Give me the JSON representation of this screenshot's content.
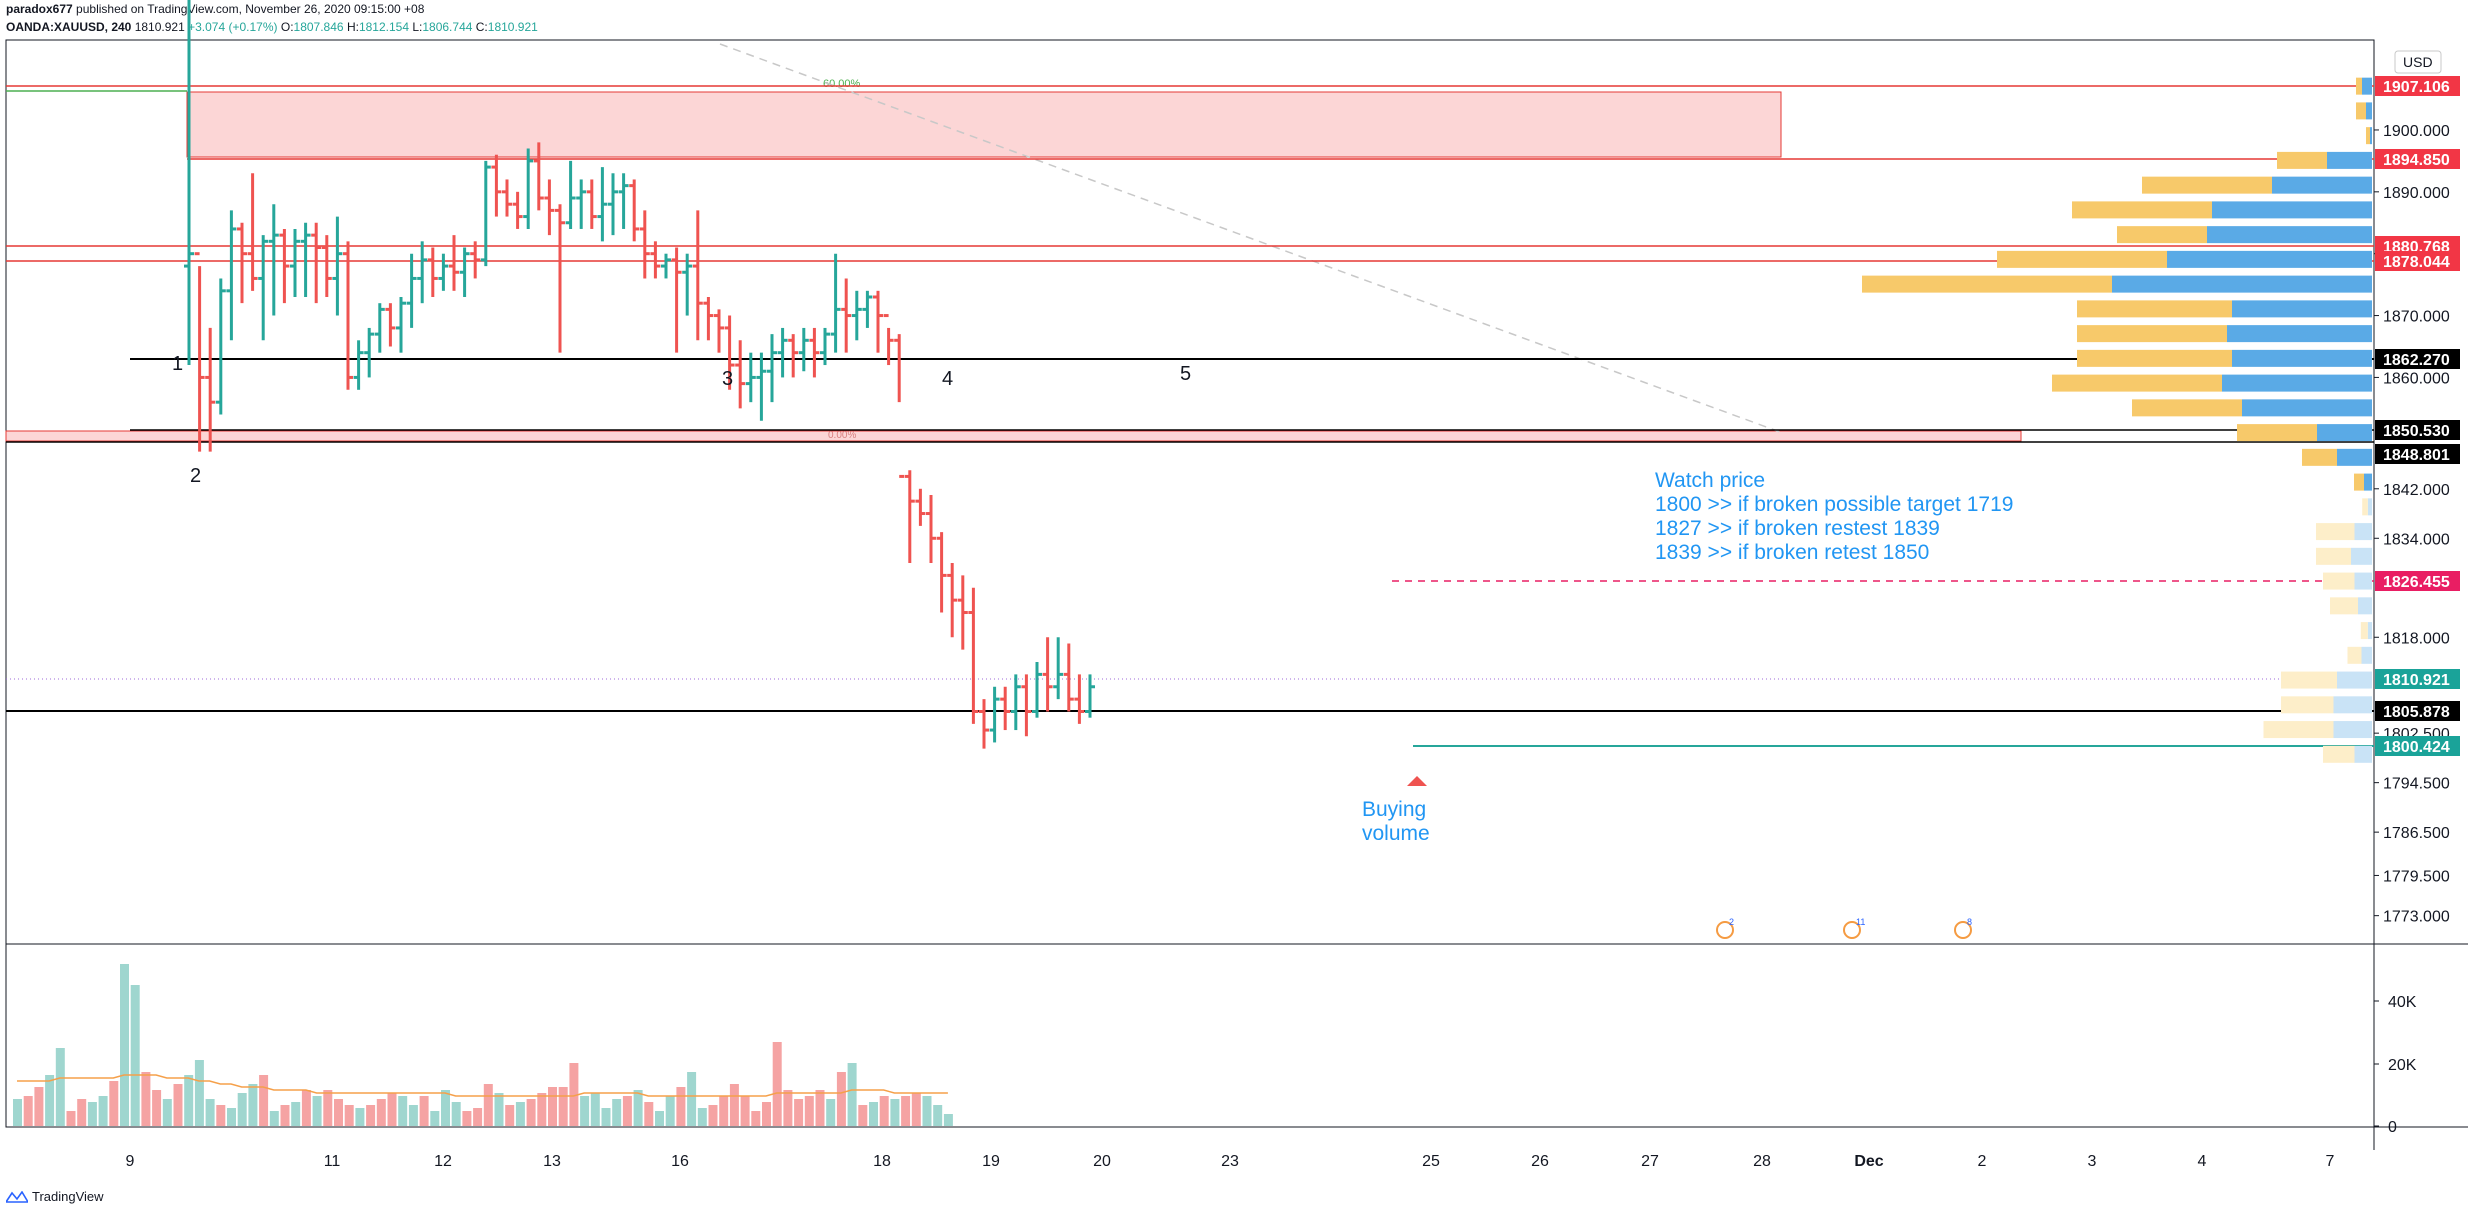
{
  "header": {
    "author": "paradox677",
    "published": "published on TradingView.com, November 26, 2020 09:15:00 +08",
    "symbol": "OANDA:XAUUSD, 240",
    "last": "1810.921",
    "change": "+3.074 (+0.17%)",
    "o_label": "O:",
    "o": "1807.846",
    "h_label": "H:",
    "h": "1812.154",
    "l_label": "L:",
    "l": "1806.744",
    "c_label": "C:",
    "c": "1810.921"
  },
  "footer": {
    "brand": "TradingView"
  },
  "colors": {
    "up": "#26a69a",
    "down": "#ef5350",
    "red_line": "#e53935",
    "zone_fill": "#fcd6d6",
    "black_line": "#000000",
    "vp_buy": "#f7c96a",
    "vp_sell": "#5aaae6",
    "annotation": "#2196f3",
    "vol_up": "#9fd6cf",
    "vol_down": "#f5a3a3",
    "vol_ma": "#f5a04a"
  },
  "chart_data": {
    "type": "ohlc",
    "currency_label": "USD",
    "price_axis": {
      "ticks": [
        "1900.000",
        "1890.000",
        "1880.000",
        "1870.000",
        "1860.000",
        "1842.000",
        "1834.000",
        "1818.000",
        "1802.500",
        "1794.500",
        "1786.500",
        "1779.500",
        "1773.000"
      ],
      "tick_prices": [
        1900,
        1890,
        1880,
        1870,
        1860,
        1842,
        1834,
        1818,
        1802.5,
        1794.5,
        1786.5,
        1779.5,
        1773
      ]
    },
    "x_axis": {
      "labels": [
        "9",
        "11",
        "12",
        "13",
        "16",
        "18",
        "19",
        "20",
        "23",
        "25",
        "26",
        "27",
        "28",
        "Dec",
        "2",
        "3",
        "4",
        "7"
      ]
    },
    "volume_axis": {
      "ticks": [
        "40K",
        "20K",
        "0"
      ]
    },
    "price_tags": [
      {
        "value": "1907.106",
        "style": "red"
      },
      {
        "value": "1894.850",
        "style": "red"
      },
      {
        "value": "1880.768",
        "style": "red"
      },
      {
        "value": "1878.044",
        "style": "red"
      },
      {
        "value": "1862.270",
        "style": "black"
      },
      {
        "value": "1850.530",
        "style": "black"
      },
      {
        "value": "1848.801",
        "style": "black"
      },
      {
        "value": "1826.455",
        "style": "pink"
      },
      {
        "value": "1810.921",
        "style": "teal"
      },
      {
        "value": "1805.878",
        "style": "black"
      },
      {
        "value": "1800.424",
        "style": "teal"
      }
    ],
    "fib_labels": [
      "60.00%",
      "0.00%"
    ],
    "wave_labels": [
      "1",
      "2",
      "3",
      "4",
      "5"
    ],
    "bars": [
      [
        1878,
        1925,
        1862,
        1880
      ],
      [
        1880,
        1878,
        1848,
        1860
      ],
      [
        1860,
        1868,
        1848,
        1856
      ],
      [
        1856,
        1876,
        1854,
        1874
      ],
      [
        1874,
        1887,
        1866,
        1884
      ],
      [
        1884,
        1885,
        1872,
        1880
      ],
      [
        1880,
        1893,
        1874,
        1876
      ],
      [
        1876,
        1883,
        1866,
        1882
      ],
      [
        1882,
        1888,
        1870,
        1883
      ],
      [
        1883,
        1884,
        1872,
        1878
      ],
      [
        1878,
        1884,
        1873,
        1882
      ],
      [
        1882,
        1885,
        1873,
        1883
      ],
      [
        1883,
        1885,
        1872,
        1881
      ],
      [
        1881,
        1883,
        1873,
        1876
      ],
      [
        1876,
        1886,
        1870,
        1880
      ],
      [
        1880,
        1882,
        1858,
        1860
      ],
      [
        1860,
        1866,
        1858,
        1864
      ],
      [
        1864,
        1868,
        1860,
        1867
      ],
      [
        1867,
        1872,
        1864,
        1871
      ],
      [
        1871,
        1872,
        1865,
        1868
      ],
      [
        1868,
        1873,
        1864,
        1872
      ],
      [
        1872,
        1880,
        1868,
        1876
      ],
      [
        1876,
        1882,
        1872,
        1879
      ],
      [
        1879,
        1881,
        1873,
        1876
      ],
      [
        1876,
        1880,
        1874,
        1878
      ],
      [
        1878,
        1883,
        1874,
        1877
      ],
      [
        1877,
        1881,
        1873,
        1880
      ],
      [
        1880,
        1882,
        1876,
        1879
      ],
      [
        1879,
        1895,
        1878,
        1894
      ],
      [
        1894,
        1896,
        1886,
        1890
      ],
      [
        1890,
        1892,
        1886,
        1888
      ],
      [
        1888,
        1890,
        1884,
        1886
      ],
      [
        1886,
        1897,
        1884,
        1895
      ],
      [
        1895,
        1898,
        1887,
        1889
      ],
      [
        1889,
        1892,
        1883,
        1887
      ],
      [
        1887,
        1888,
        1864,
        1885
      ],
      [
        1885,
        1895,
        1884,
        1889
      ],
      [
        1889,
        1892,
        1884,
        1890
      ],
      [
        1890,
        1892,
        1884,
        1886
      ],
      [
        1886,
        1894,
        1882,
        1888
      ],
      [
        1888,
        1893,
        1883,
        1890
      ],
      [
        1890,
        1893,
        1884,
        1891
      ],
      [
        1891,
        1892,
        1882,
        1884
      ],
      [
        1884,
        1887,
        1876,
        1880
      ],
      [
        1880,
        1882,
        1876,
        1878
      ],
      [
        1878,
        1880,
        1876,
        1879
      ],
      [
        1879,
        1881,
        1864,
        1877
      ],
      [
        1877,
        1880,
        1870,
        1878
      ],
      [
        1878,
        1887,
        1866,
        1872
      ],
      [
        1872,
        1873,
        1866,
        1870
      ],
      [
        1870,
        1871,
        1864,
        1868
      ],
      [
        1868,
        1870,
        1858,
        1862
      ],
      [
        1862,
        1866,
        1855,
        1859
      ],
      [
        1859,
        1864,
        1856,
        1860
      ],
      [
        1860,
        1864,
        1853,
        1861
      ],
      [
        1861,
        1867,
        1856,
        1864
      ],
      [
        1864,
        1868,
        1860,
        1866
      ],
      [
        1866,
        1867,
        1860,
        1864
      ],
      [
        1864,
        1868,
        1861,
        1866
      ],
      [
        1866,
        1868,
        1860,
        1864
      ],
      [
        1864,
        1868,
        1862,
        1867
      ],
      [
        1867,
        1880,
        1864,
        1871
      ],
      [
        1871,
        1876,
        1864,
        1870
      ],
      [
        1870,
        1874,
        1866,
        1871
      ],
      [
        1871,
        1874,
        1868,
        1873
      ],
      [
        1873,
        1874,
        1864,
        1870
      ],
      [
        1870,
        1868,
        1862,
        1866
      ],
      [
        1866,
        1867,
        1856,
        1844
      ],
      [
        1844,
        1845,
        1830,
        1840
      ],
      [
        1840,
        1842,
        1836,
        1838
      ],
      [
        1838,
        1841,
        1830,
        1834
      ],
      [
        1834,
        1835,
        1822,
        1828
      ],
      [
        1828,
        1830,
        1818,
        1824
      ],
      [
        1824,
        1828,
        1816,
        1822
      ],
      [
        1822,
        1826,
        1804,
        1806
      ],
      [
        1806,
        1808,
        1800,
        1803
      ],
      [
        1803,
        1810,
        1801,
        1808
      ],
      [
        1808,
        1810,
        1803,
        1806
      ],
      [
        1806,
        1812,
        1803,
        1810
      ],
      [
        1810,
        1812,
        1802,
        1806
      ],
      [
        1806,
        1814,
        1805,
        1812
      ],
      [
        1812,
        1818,
        1806,
        1810
      ],
      [
        1810,
        1818,
        1808,
        1812
      ],
      [
        1812,
        1817,
        1806,
        1808
      ],
      [
        1808,
        1812,
        1804,
        1806
      ],
      [
        1806,
        1812,
        1805,
        1810
      ]
    ],
    "volume": [
      9,
      10,
      13,
      17,
      26,
      5,
      9,
      8,
      10,
      15,
      54,
      47,
      18,
      12,
      9,
      14,
      17,
      22,
      9,
      7,
      6,
      11,
      14,
      17,
      5,
      7,
      8,
      12,
      10,
      12,
      9,
      7,
      6,
      7,
      9,
      11,
      10,
      7,
      10,
      5,
      12,
      8,
      5,
      6,
      14,
      11,
      7,
      8,
      9,
      11,
      13,
      13,
      21,
      10,
      11,
      6,
      9,
      10,
      12,
      8,
      5,
      10,
      13,
      18,
      6,
      7,
      10,
      14,
      10,
      5,
      8,
      28,
      12,
      9,
      10,
      12,
      9,
      18,
      21,
      7,
      8,
      10,
      9,
      10,
      11,
      10,
      7,
      4
    ],
    "volume_ma": [
      15,
      15,
      15,
      15,
      16,
      16,
      16,
      16,
      16,
      16,
      17,
      17,
      17,
      17,
      16,
      16,
      16,
      15,
      15,
      14,
      14,
      13,
      13,
      13,
      12,
      12,
      12,
      12,
      11,
      11,
      11,
      11,
      11,
      11,
      11,
      11,
      11,
      11,
      11,
      11,
      11,
      10,
      10,
      10,
      10,
      10,
      10,
      10,
      10,
      10,
      10,
      10,
      10,
      11,
      11,
      11,
      11,
      11,
      11,
      10,
      10,
      10,
      10,
      10,
      10,
      10,
      10,
      10,
      10,
      10,
      10,
      11,
      11,
      11,
      11,
      11,
      11,
      11,
      12,
      12,
      12,
      12,
      11,
      11,
      11,
      11,
      11,
      11
    ],
    "annotation_lines": [
      "Watch price",
      "1800 >> if broken possible target 1719",
      "1827  >> if broken restest 1839",
      "1839  >> if broken retest 1850"
    ],
    "buying_volume": [
      "Buying",
      "volume"
    ],
    "event_badges": [
      "2",
      "11",
      "8"
    ],
    "volume_profile": [
      {
        "price": 1907,
        "buy": 6,
        "sell": 10
      },
      {
        "price": 1903,
        "buy": 10,
        "sell": 6
      },
      {
        "price": 1899,
        "buy": 4,
        "sell": 2
      },
      {
        "price": 1895,
        "buy": 50,
        "sell": 45
      },
      {
        "price": 1891,
        "buy": 130,
        "sell": 100
      },
      {
        "price": 1887,
        "buy": 140,
        "sell": 160
      },
      {
        "price": 1883,
        "buy": 90,
        "sell": 165
      },
      {
        "price": 1879,
        "buy": 170,
        "sell": 205
      },
      {
        "price": 1875,
        "buy": 250,
        "sell": 260
      },
      {
        "price": 1871,
        "buy": 155,
        "sell": 140
      },
      {
        "price": 1867,
        "buy": 150,
        "sell": 145
      },
      {
        "price": 1863,
        "buy": 155,
        "sell": 140
      },
      {
        "price": 1859,
        "buy": 170,
        "sell": 150
      },
      {
        "price": 1855,
        "buy": 110,
        "sell": 130
      },
      {
        "price": 1851,
        "buy": 80,
        "sell": 55
      },
      {
        "price": 1847,
        "buy": 35,
        "sell": 35
      },
      {
        "price": 1843,
        "buy": 10,
        "sell": 8
      },
      {
        "price": 1839,
        "buy": 8,
        "sell": 6
      },
      {
        "price": 1835,
        "buy": 55,
        "sell": 25
      },
      {
        "price": 1831,
        "buy": 50,
        "sell": 30
      },
      {
        "price": 1827,
        "buy": 45,
        "sell": 25
      },
      {
        "price": 1823,
        "buy": 40,
        "sell": 20
      },
      {
        "price": 1819,
        "buy": 10,
        "sell": 6
      },
      {
        "price": 1815,
        "buy": 20,
        "sell": 15
      },
      {
        "price": 1811,
        "buy": 80,
        "sell": 50
      },
      {
        "price": 1807,
        "buy": 75,
        "sell": 55
      },
      {
        "price": 1803,
        "buy": 100,
        "sell": 55
      },
      {
        "price": 1799,
        "buy": 45,
        "sell": 25
      }
    ]
  }
}
